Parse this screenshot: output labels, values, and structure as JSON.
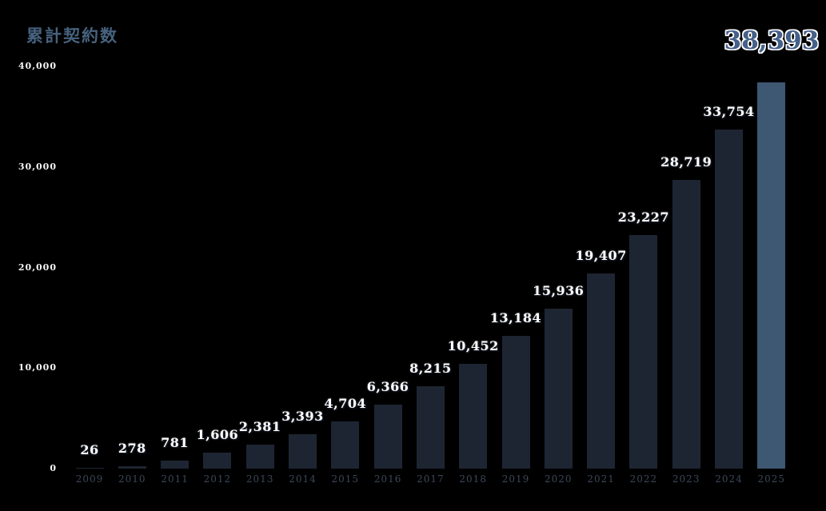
{
  "title": "累計契約数",
  "total_label": "38,393",
  "colors": {
    "background": "#000000",
    "bar": "#1e2532",
    "bar_highlight": "#3e5773",
    "title": "#46627e",
    "total": "#45608a",
    "value_label": "#ffffff",
    "year_label": "#3b4758",
    "y_tick_label": "#f5f6f8"
  },
  "chart_data": {
    "type": "bar",
    "title": "累計契約数",
    "categories": [
      "2009",
      "2010",
      "2011",
      "2012",
      "2013",
      "2014",
      "2015",
      "2016",
      "2017",
      "2018",
      "2019",
      "2020",
      "2021",
      "2022",
      "2023",
      "2024",
      "2025"
    ],
    "values": [
      26,
      278,
      781,
      1606,
      2381,
      3393,
      4704,
      6366,
      8215,
      10452,
      13184,
      15936,
      19407,
      23227,
      28719,
      33754,
      38393
    ],
    "value_labels": [
      "26",
      "278",
      "781",
      "1,606",
      "2,381",
      "3,393",
      "4,704",
      "6,366",
      "8,215",
      "10,452",
      "13,184",
      "15,936",
      "19,407",
      "23,227",
      "28,719",
      "33,754",
      ""
    ],
    "highlight_last_bar": true,
    "highlight_value_label": "38,393",
    "xlabel": "",
    "ylabel": "",
    "ylim": [
      0,
      40000
    ],
    "y_ticks": [
      "0",
      "10,000",
      "20,000",
      "30,000",
      "40,000"
    ],
    "y_tick_values": [
      0,
      10000,
      20000,
      30000,
      40000
    ],
    "grid": false,
    "legend": false
  }
}
